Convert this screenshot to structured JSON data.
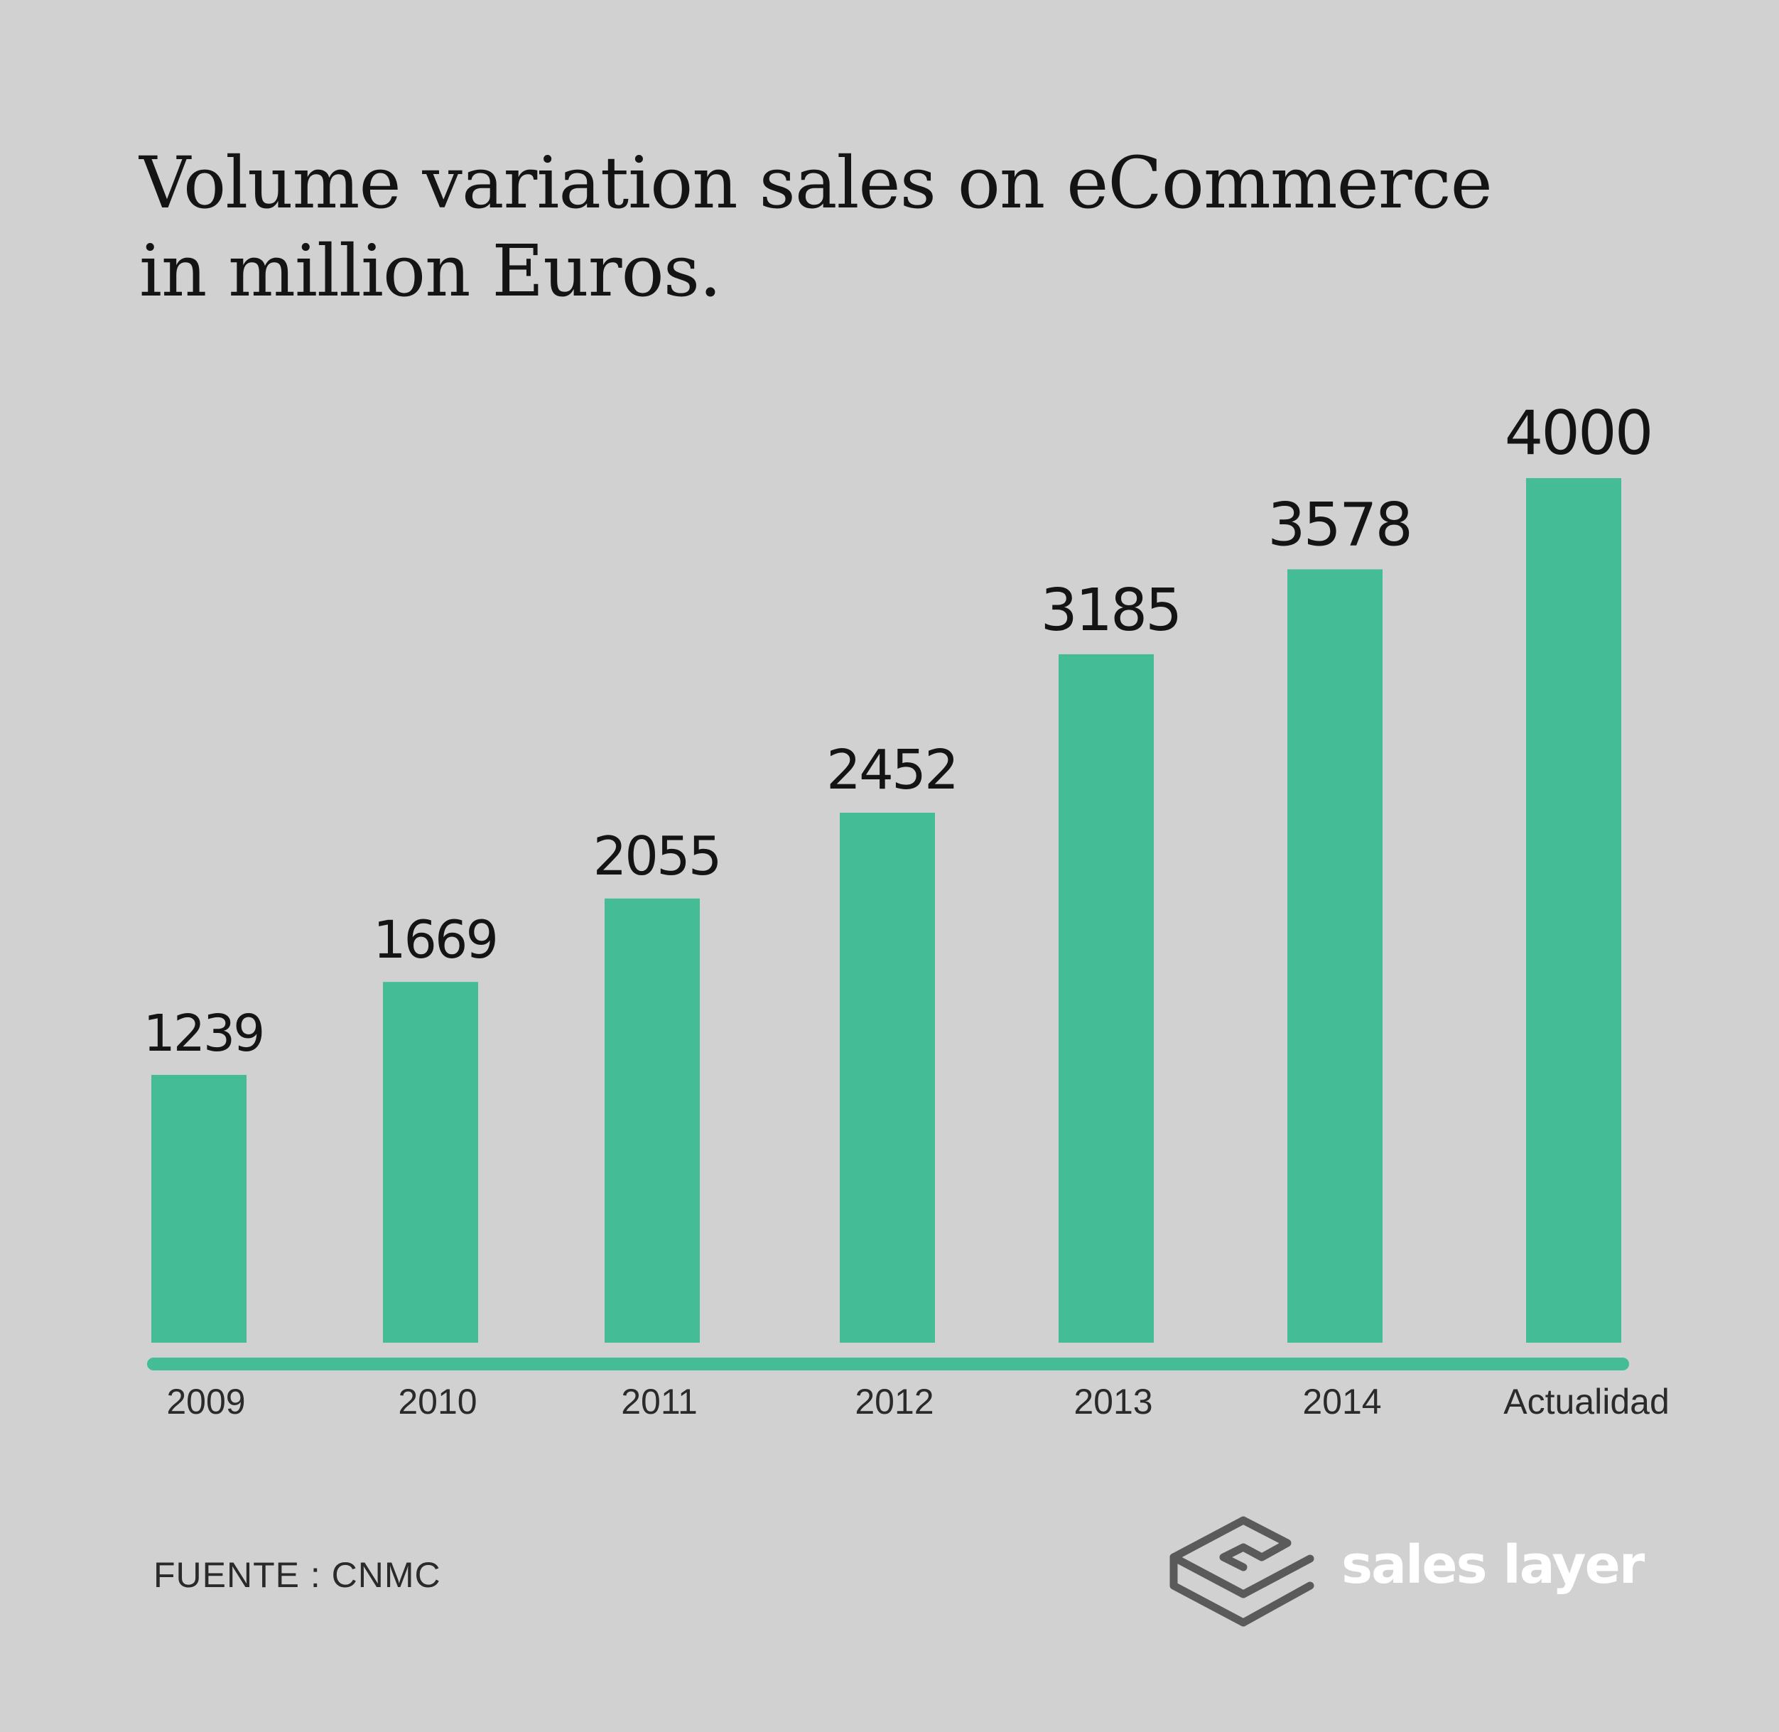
{
  "title_lines": [
    "Volume variation sales on eCommerce",
    "in million Euros."
  ],
  "source": "FUENTE : CNMC",
  "brand": {
    "name": "sales layer",
    "logo_icon": "stacked-layers-icon"
  },
  "colors": {
    "background": "#d0d1d0",
    "bar": "#44bd97",
    "baseline": "#44bd97",
    "label_text": "#141414",
    "brand_text": "#ffffff",
    "logo_stroke": "#5a5a5a"
  },
  "chart_data": {
    "type": "bar",
    "title": "Volume variation sales on eCommerce in million Euros.",
    "xlabel": "",
    "ylabel": "",
    "categories": [
      "2009",
      "2010",
      "2011",
      "2012",
      "2013",
      "2014",
      "Actualidad"
    ],
    "values": [
      1239,
      1669,
      2055,
      2452,
      3185,
      3578,
      4000
    ],
    "data_labels": [
      "1239",
      "1669",
      "2055",
      "2452",
      "3185",
      "3578",
      "4000"
    ],
    "ylim": [
      0,
      4000
    ],
    "grid": false,
    "legend": "none"
  }
}
